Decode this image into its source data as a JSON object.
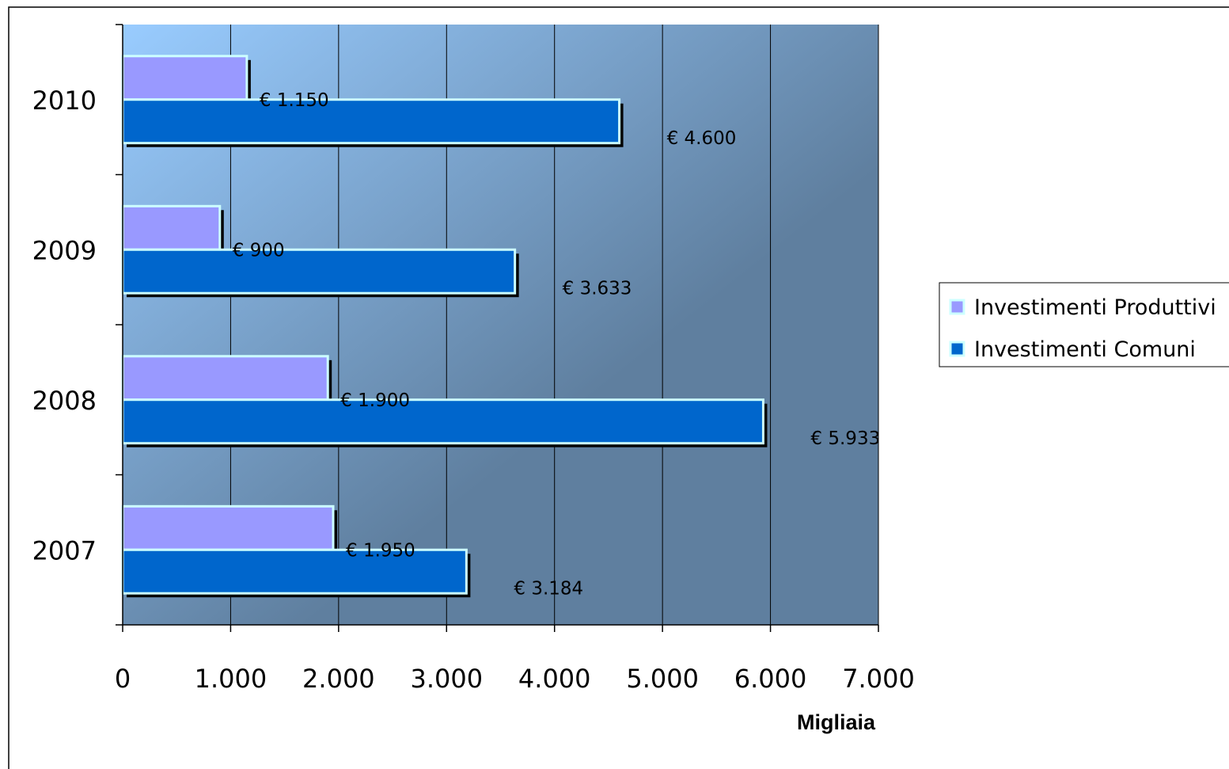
{
  "chart_data": {
    "type": "bar",
    "orientation": "horizontal",
    "categories": [
      "2010",
      "2009",
      "2008",
      "2007"
    ],
    "series": [
      {
        "name": "Investimenti Produttivi",
        "values": [
          1150,
          900,
          1900,
          1950
        ],
        "labels": [
          "€ 1.150",
          "€ 900",
          "€ 1.900",
          "€ 1.950"
        ],
        "color": "#9999ff"
      },
      {
        "name": "Investimenti Comuni",
        "values": [
          4600,
          3633,
          5933,
          3184
        ],
        "labels": [
          "€ 4.600",
          "€ 3.633",
          "€ 5.933",
          "€ 3.184"
        ],
        "color": "#0066cc"
      }
    ],
    "xlabel": "Migliaia",
    "xlim": [
      0,
      7000
    ],
    "xticks": [
      0,
      1000,
      2000,
      3000,
      4000,
      5000,
      6000,
      7000
    ],
    "xtick_labels": [
      "0",
      "1.000",
      "2.000",
      "3.000",
      "4.000",
      "5.000",
      "6.000",
      "7.000"
    ],
    "grid": true,
    "legend_position": "right",
    "bar_border_color": "#ccffff",
    "plot_background": [
      "#99ccff",
      "#5f7f9f"
    ]
  }
}
